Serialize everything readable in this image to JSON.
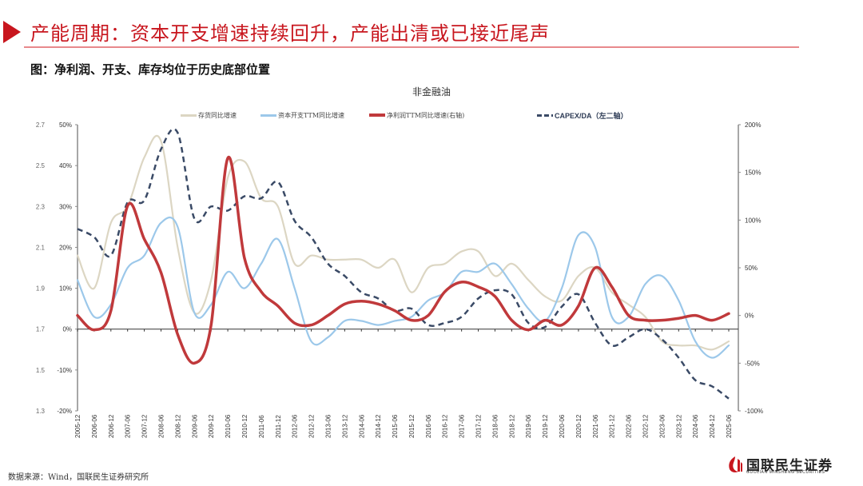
{
  "header": {
    "title": "产能周期：资本开支增速持续回升，产能出清或已接近尾声",
    "accent_color": "#c8161e"
  },
  "figure": {
    "caption": "图：净利润、开支、库存均位于历史底部位置",
    "source": "数据来源：Wind，国联民生证券研究所"
  },
  "logo": {
    "name_cn": "国联民生证券",
    "name_en": "GUOLIAN MINSHENG SECURITIES"
  },
  "chart_data": {
    "type": "line",
    "title": "非金融油",
    "xlabel": "",
    "ylabel": "",
    "legend_position": "top",
    "grid": false,
    "axes": {
      "left_secondary": {
        "label": "CAPEX/DA",
        "ticks": [
          "2.7",
          "2.5",
          "2.3",
          "2.1",
          "1.9",
          "1.7",
          "1.5",
          "1.3"
        ],
        "range": [
          1.3,
          2.7
        ]
      },
      "left_primary": {
        "ticks": [
          "50%",
          "40%",
          "30%",
          "20%",
          "10%",
          "0%",
          "-10%",
          "-20%"
        ],
        "range": [
          -20,
          50
        ]
      },
      "right": {
        "ticks": [
          "200%",
          "150%",
          "100%",
          "50%",
          "0%",
          "-50%",
          "-100%"
        ],
        "range": [
          -100,
          200
        ]
      }
    },
    "x_tick_labels": [
      "2005-12",
      "2006-06",
      "2006-12",
      "2007-06",
      "2007-12",
      "2008-06",
      "2008-12",
      "2009-06",
      "2009-12",
      "2010-06",
      "2010-12",
      "2011-06",
      "2011-12",
      "2012-06",
      "2012-12",
      "2013-06",
      "2013-12",
      "2014-06",
      "2014-12",
      "2015-06",
      "2015-12",
      "2016-06",
      "2016-12",
      "2017-06",
      "2017-12",
      "2018-06",
      "2018-12",
      "2019-06",
      "2019-12",
      "2020-06",
      "2020-12",
      "2021-06",
      "2021-12",
      "2022-06",
      "2022-12",
      "2023-06",
      "2023-12",
      "2024-06",
      "2024-12",
      "2025-06"
    ],
    "x": [
      "2005-12",
      "2006-06",
      "2006-12",
      "2007-06",
      "2007-12",
      "2008-06",
      "2008-12",
      "2009-06",
      "2009-12",
      "2010-06",
      "2010-12",
      "2011-06",
      "2011-12",
      "2012-06",
      "2012-12",
      "2013-06",
      "2013-12",
      "2014-06",
      "2014-12",
      "2015-06",
      "2015-12",
      "2016-06",
      "2016-12",
      "2017-06",
      "2017-12",
      "2018-06",
      "2018-12",
      "2019-06",
      "2019-12",
      "2020-06",
      "2020-12",
      "2021-06",
      "2021-12",
      "2022-06",
      "2022-12",
      "2023-06",
      "2023-12",
      "2024-06",
      "2024-12",
      "2025-06"
    ],
    "series": [
      {
        "name": "存货同比增速",
        "axis": "left_primary",
        "unit": "%",
        "color": "#dcd6c3",
        "style": "solid",
        "values": [
          18,
          10,
          26,
          30,
          42,
          46,
          20,
          4,
          12,
          37,
          41,
          32,
          30,
          16,
          18,
          17,
          17,
          17,
          15,
          17,
          9,
          15,
          16,
          19,
          19,
          13,
          16,
          12,
          8,
          7,
          13,
          15,
          9,
          6,
          3,
          -3,
          -4,
          -4,
          -5,
          -3
        ]
      },
      {
        "name": "资本开支TTM同比增速",
        "axis": "left_primary",
        "unit": "%",
        "color": "#9cc8ea",
        "style": "solid",
        "values": [
          12,
          3,
          6,
          15,
          18,
          26,
          25,
          4,
          6,
          14,
          10,
          16,
          22,
          10,
          -3,
          -2,
          2,
          2,
          1,
          2,
          3,
          7,
          9,
          14,
          14,
          16,
          11,
          5,
          2,
          10,
          23,
          20,
          3,
          3,
          11,
          13,
          7,
          -3,
          -7,
          -4
        ]
      },
      {
        "name": "净利润TTM同比增速(右轴)",
        "axis": "right",
        "unit": "%",
        "color": "#c0393b",
        "style": "solid",
        "values": [
          0,
          -15,
          5,
          115,
          80,
          45,
          -20,
          -50,
          -10,
          165,
          60,
          25,
          10,
          -8,
          -10,
          0,
          12,
          15,
          12,
          5,
          -5,
          0,
          25,
          35,
          30,
          20,
          -5,
          -15,
          -5,
          -10,
          10,
          50,
          30,
          0,
          -5,
          -5,
          -3,
          0,
          -5,
          2
        ]
      },
      {
        "name": "CAPEX/DA（左二轴）",
        "axis": "left_secondary",
        "unit": "x",
        "color": "#3a4a66",
        "style": "dashed",
        "values": [
          2.19,
          2.15,
          2.06,
          2.32,
          2.33,
          2.58,
          2.66,
          2.24,
          2.3,
          2.28,
          2.35,
          2.34,
          2.42,
          2.23,
          2.15,
          2.02,
          1.96,
          1.88,
          1.85,
          1.79,
          1.8,
          1.72,
          1.73,
          1.76,
          1.85,
          1.89,
          1.87,
          1.73,
          1.71,
          1.81,
          1.87,
          1.73,
          1.62,
          1.66,
          1.7,
          1.65,
          1.56,
          1.45,
          1.42,
          1.36
        ]
      }
    ]
  }
}
